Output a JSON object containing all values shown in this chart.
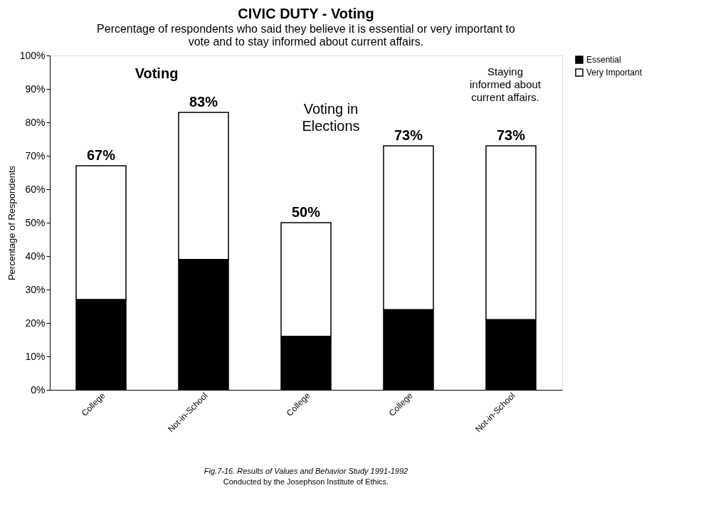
{
  "chart_data": {
    "type": "bar",
    "stacked": true,
    "title": "CIVIC DUTY - Voting",
    "subtitle": "Percentage of respondents who said they believe it is essential or very important to vote and to stay informed about current affairs.",
    "ylabel": "Percentage of Respondents",
    "categories": [
      "College",
      "Not-in-School",
      "College",
      "College",
      "Not-in-School"
    ],
    "series": [
      {
        "name": "Essential",
        "color": "#000000",
        "values": [
          27,
          39,
          16,
          24,
          21
        ]
      },
      {
        "name": "Very Important",
        "color": "#ffffff",
        "values": [
          40,
          44,
          34,
          49,
          52
        ]
      }
    ],
    "totals": [
      "67%",
      "83%",
      "50%",
      "73%",
      "73%"
    ],
    "ylim": [
      0,
      100
    ],
    "yticks": [
      {
        "value": 0,
        "label": "0%"
      },
      {
        "value": 10,
        "label": "10%"
      },
      {
        "value": 20,
        "label": "20%"
      },
      {
        "value": 30,
        "label": "30%"
      },
      {
        "value": 40,
        "label": "40%"
      },
      {
        "value": 50,
        "label": "50%"
      },
      {
        "value": 60,
        "label": "60%"
      },
      {
        "value": 70,
        "label": "70%"
      },
      {
        "value": 80,
        "label": "80%"
      },
      {
        "value": 90,
        "label": "90%"
      },
      {
        "value": 100,
        "label": "100%"
      }
    ],
    "grid": false,
    "legend": "right",
    "annotations": [
      "Voting",
      "Voting in Elections",
      "Staying informed about current affairs.",
      "Fig.7-16. Results of Values and Behavior Study 1991-1992",
      "Conducted by the Josephson Institute of Ethics."
    ]
  }
}
